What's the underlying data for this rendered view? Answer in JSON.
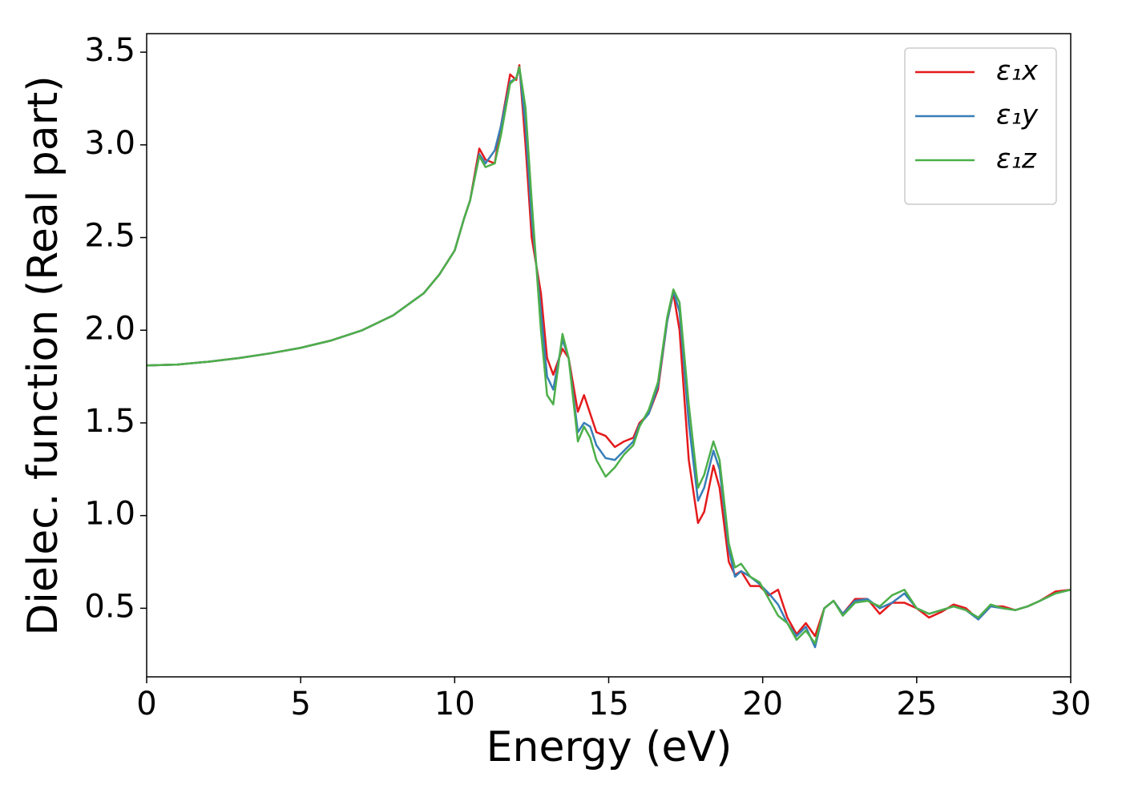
{
  "chart_data": {
    "type": "line",
    "x_label": "Energy (eV)",
    "y_label": "Dielec. function (Real part)",
    "x": [
      0,
      1,
      2,
      3,
      4,
      5,
      6,
      7,
      8,
      9,
      9.5,
      10,
      10.3,
      10.5,
      10.8,
      11.0,
      11.3,
      11.5,
      11.8,
      12.0,
      12.1,
      12.3,
      12.5,
      12.8,
      13.0,
      13.2,
      13.5,
      13.7,
      14.0,
      14.2,
      14.4,
      14.6,
      14.9,
      15.2,
      15.5,
      15.8,
      16.0,
      16.3,
      16.6,
      16.9,
      17.1,
      17.3,
      17.6,
      17.9,
      18.1,
      18.4,
      18.6,
      18.9,
      19.1,
      19.3,
      19.6,
      19.9,
      20.2,
      20.5,
      20.8,
      21.1,
      21.4,
      21.7,
      22.0,
      22.3,
      22.6,
      23.0,
      23.4,
      23.8,
      24.2,
      24.6,
      25.0,
      25.4,
      25.8,
      26.2,
      26.6,
      27.0,
      27.4,
      27.8,
      28.2,
      28.6,
      29.0,
      29.5,
      30
    ],
    "series": [
      {
        "name": "ε₁x",
        "color": "#e41a1c",
        "values": [
          1.81,
          1.815,
          1.83,
          1.85,
          1.875,
          1.905,
          1.945,
          2.0,
          2.08,
          2.2,
          2.3,
          2.43,
          2.6,
          2.7,
          2.98,
          2.92,
          2.9,
          3.1,
          3.38,
          3.35,
          3.43,
          3.0,
          2.5,
          2.2,
          1.85,
          1.76,
          1.9,
          1.85,
          1.56,
          1.65,
          1.55,
          1.45,
          1.43,
          1.37,
          1.4,
          1.42,
          1.5,
          1.55,
          1.68,
          2.05,
          2.2,
          2.0,
          1.3,
          0.96,
          1.02,
          1.27,
          1.15,
          0.75,
          0.68,
          0.7,
          0.62,
          0.62,
          0.57,
          0.6,
          0.45,
          0.36,
          0.42,
          0.35,
          0.5,
          0.54,
          0.47,
          0.55,
          0.55,
          0.47,
          0.53,
          0.53,
          0.5,
          0.45,
          0.48,
          0.52,
          0.5,
          0.44,
          0.51,
          0.51,
          0.49,
          0.51,
          0.54,
          0.59,
          0.6
        ]
      },
      {
        "name": "ε₁y",
        "color": "#377eb8",
        "values": [
          1.81,
          1.815,
          1.83,
          1.85,
          1.875,
          1.905,
          1.945,
          2.0,
          2.08,
          2.2,
          2.3,
          2.43,
          2.6,
          2.7,
          2.95,
          2.9,
          2.97,
          3.1,
          3.34,
          3.36,
          3.42,
          3.1,
          2.6,
          2.1,
          1.75,
          1.68,
          1.95,
          1.85,
          1.45,
          1.5,
          1.48,
          1.38,
          1.31,
          1.3,
          1.35,
          1.4,
          1.49,
          1.55,
          1.7,
          2.05,
          2.21,
          2.1,
          1.5,
          1.08,
          1.15,
          1.35,
          1.25,
          0.82,
          0.67,
          0.7,
          0.67,
          0.63,
          0.58,
          0.52,
          0.42,
          0.35,
          0.4,
          0.29,
          0.5,
          0.54,
          0.47,
          0.54,
          0.55,
          0.5,
          0.53,
          0.58,
          0.5,
          0.47,
          0.49,
          0.51,
          0.49,
          0.44,
          0.51,
          0.5,
          0.49,
          0.51,
          0.54,
          0.58,
          0.6
        ]
      },
      {
        "name": "ε₁z",
        "color": "#4daf4a",
        "values": [
          1.81,
          1.815,
          1.83,
          1.85,
          1.875,
          1.905,
          1.945,
          2.0,
          2.08,
          2.2,
          2.3,
          2.43,
          2.6,
          2.7,
          2.94,
          2.88,
          2.9,
          3.05,
          3.33,
          3.36,
          3.42,
          3.2,
          2.7,
          2.0,
          1.65,
          1.6,
          1.98,
          1.85,
          1.4,
          1.48,
          1.42,
          1.3,
          1.21,
          1.26,
          1.33,
          1.38,
          1.48,
          1.57,
          1.72,
          2.07,
          2.22,
          2.15,
          1.6,
          1.15,
          1.22,
          1.4,
          1.3,
          0.85,
          0.72,
          0.74,
          0.67,
          0.64,
          0.55,
          0.46,
          0.42,
          0.33,
          0.38,
          0.31,
          0.5,
          0.54,
          0.46,
          0.53,
          0.54,
          0.51,
          0.57,
          0.6,
          0.5,
          0.47,
          0.49,
          0.51,
          0.49,
          0.45,
          0.52,
          0.5,
          0.49,
          0.51,
          0.54,
          0.58,
          0.6
        ]
      }
    ],
    "xlim": [
      0,
      30
    ],
    "xticks": [
      0,
      5,
      10,
      15,
      20,
      25,
      30
    ],
    "ylim": [
      0.13,
      3.6
    ],
    "yticks": [
      0.5,
      {
        "value": 1,
        "label": "1.0"
      },
      1.5,
      {
        "value": 2,
        "label": "2.0"
      },
      2.5,
      {
        "value": 3,
        "label": "3.0"
      },
      3.5
    ],
    "legend": "upper right",
    "grid": false
  }
}
